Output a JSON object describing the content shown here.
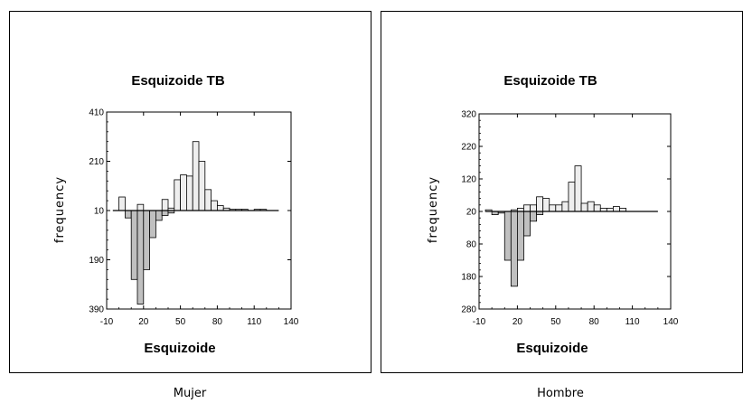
{
  "chart_data": [
    {
      "type": "bar",
      "panel_caption": "Mujer",
      "title": "Esquizoide TB",
      "xlabel": "Esquizoide",
      "ylabel": "frequency",
      "xlim": [
        -10,
        140
      ],
      "ylim": [
        -390,
        410
      ],
      "x_ticks": [
        -10,
        20,
        50,
        80,
        110,
        140
      ],
      "y_ticks": [
        {
          "value": 410,
          "label": "410"
        },
        {
          "value": 210,
          "label": "210"
        },
        {
          "value": 10,
          "label": "10"
        },
        {
          "value": -190,
          "label": "190"
        },
        {
          "value": -390,
          "label": "390"
        }
      ],
      "baseline": 10,
      "bin_width": 5,
      "bins": [
        -5,
        0,
        5,
        10,
        15,
        20,
        25,
        30,
        35,
        40,
        45,
        50,
        55,
        60,
        65,
        70,
        75,
        80,
        85,
        90,
        95,
        100,
        105,
        110,
        115,
        120,
        125,
        130
      ],
      "series": [
        {
          "name": "",
          "color": "#eeeeee",
          "values": [
            0,
            55,
            0,
            0,
            25,
            0,
            0,
            0,
            45,
            10,
            125,
            145,
            140,
            280,
            200,
            85,
            40,
            20,
            10,
            5,
            5,
            5,
            0,
            5,
            5,
            0,
            0,
            0
          ]
        },
        {
          "name": "",
          "color": "#c0c0c0",
          "values": [
            0,
            0,
            -30,
            -280,
            -380,
            -240,
            -110,
            -40,
            -20,
            -10,
            0,
            0,
            0,
            0,
            0,
            0,
            0,
            0,
            0,
            0,
            0,
            0,
            0,
            0,
            0,
            0,
            0,
            0
          ]
        }
      ]
    },
    {
      "type": "bar",
      "panel_caption": "Hombre",
      "title": "Esquizoide TB",
      "xlabel": "Esquizoide",
      "ylabel": "frequency",
      "xlim": [
        -10,
        140
      ],
      "ylim": [
        -280,
        320
      ],
      "x_ticks": [
        -10,
        20,
        50,
        80,
        110,
        140
      ],
      "y_ticks": [
        {
          "value": 320,
          "label": "320"
        },
        {
          "value": 220,
          "label": "220"
        },
        {
          "value": 120,
          "label": "120"
        },
        {
          "value": 20,
          "label": "20"
        },
        {
          "value": -80,
          "label": "80"
        },
        {
          "value": -180,
          "label": "180"
        },
        {
          "value": -280,
          "label": "280"
        }
      ],
      "baseline": 20,
      "bin_width": 5,
      "bins": [
        -5,
        0,
        5,
        10,
        15,
        20,
        25,
        30,
        35,
        40,
        45,
        50,
        55,
        60,
        65,
        70,
        75,
        80,
        85,
        90,
        95,
        100,
        105,
        110,
        115,
        120,
        125,
        130
      ],
      "series": [
        {
          "name": "",
          "color": "#eeeeee",
          "values": [
            5,
            0,
            0,
            0,
            5,
            10,
            20,
            20,
            45,
            40,
            20,
            20,
            30,
            90,
            140,
            25,
            30,
            20,
            10,
            10,
            15,
            10,
            0,
            0,
            0,
            0,
            0,
            0
          ]
        },
        {
          "name": "",
          "color": "#c0c0c0",
          "values": [
            0,
            -10,
            -5,
            -150,
            -230,
            -150,
            -75,
            -30,
            -10,
            0,
            0,
            0,
            0,
            0,
            0,
            0,
            0,
            0,
            0,
            0,
            0,
            0,
            0,
            0,
            0,
            0,
            0,
            0
          ]
        }
      ]
    }
  ]
}
